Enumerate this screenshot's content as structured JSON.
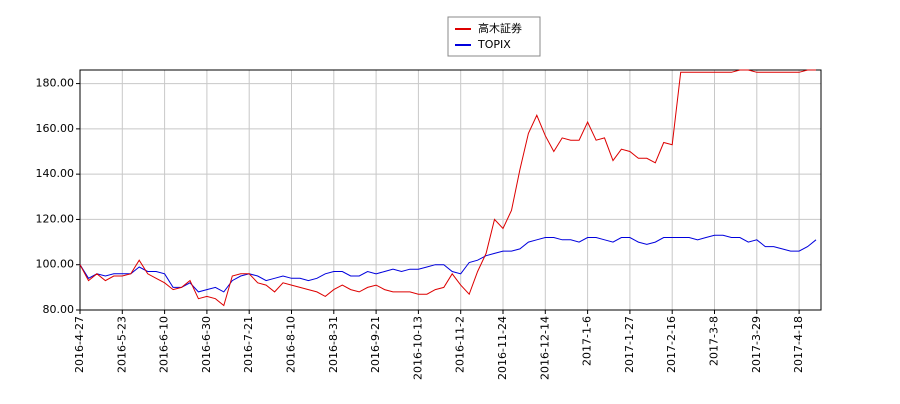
{
  "chart_data": {
    "type": "line",
    "categories": [
      "2016-4-27",
      null,
      null,
      null,
      null,
      "2016-5-23",
      null,
      null,
      null,
      null,
      "2016-6-10",
      null,
      null,
      null,
      null,
      "2016-6-30",
      null,
      null,
      null,
      null,
      "2016-7-21",
      null,
      null,
      null,
      null,
      "2016-8-10",
      null,
      null,
      null,
      null,
      "2016-8-31",
      null,
      null,
      null,
      null,
      "2016-9-21",
      null,
      null,
      null,
      null,
      "2016-10-13",
      null,
      null,
      null,
      null,
      "2016-11-2",
      null,
      null,
      null,
      null,
      "2016-11-24",
      null,
      null,
      null,
      null,
      "2016-12-14",
      null,
      null,
      null,
      null,
      "2017-1-6",
      null,
      null,
      null,
      null,
      "2017-1-27",
      null,
      null,
      null,
      null,
      "2017-2-16",
      null,
      null,
      null,
      null,
      "2017-3-8",
      null,
      null,
      null,
      null,
      "2017-3-29",
      null,
      null,
      null,
      null,
      "2017-4-18",
      null,
      null
    ],
    "series": [
      {
        "name": "高木証券",
        "color": "#dd0000",
        "values": [
          100,
          93,
          96,
          93,
          95,
          95,
          96,
          102,
          96,
          94,
          92,
          89,
          90,
          93,
          85,
          86,
          85,
          82,
          95,
          96,
          96,
          92,
          91,
          88,
          92,
          91,
          90,
          89,
          88,
          86,
          89,
          91,
          89,
          88,
          90,
          91,
          89,
          88,
          88,
          88,
          87,
          87,
          89,
          90,
          96,
          91,
          87,
          97,
          105,
          120,
          116,
          124,
          142,
          158,
          166,
          157,
          150,
          156,
          155,
          155,
          163,
          155,
          156,
          146,
          151,
          150,
          147,
          147,
          145,
          154,
          153,
          185,
          185,
          185,
          185,
          185,
          185,
          185,
          186,
          186,
          185,
          185,
          185,
          185,
          185,
          185,
          186,
          186
        ]
      },
      {
        "name": "TOPIX",
        "color": "#0000dd",
        "values": [
          100,
          94,
          96,
          95,
          96,
          96,
          96,
          99,
          97,
          97,
          96,
          90,
          90,
          92,
          88,
          89,
          90,
          88,
          93,
          95,
          96,
          95,
          93,
          94,
          95,
          94,
          94,
          93,
          94,
          96,
          97,
          97,
          95,
          95,
          97,
          96,
          97,
          98,
          97,
          98,
          98,
          99,
          100,
          100,
          97,
          96,
          101,
          102,
          104,
          105,
          106,
          106,
          107,
          110,
          111,
          112,
          112,
          111,
          111,
          110,
          112,
          112,
          111,
          110,
          112,
          112,
          110,
          109,
          110,
          112,
          112,
          112,
          112,
          111,
          112,
          113,
          113,
          112,
          112,
          110,
          111,
          108,
          108,
          107,
          106,
          106,
          108,
          111
        ]
      }
    ],
    "ylim": [
      80,
      186
    ],
    "yticks": [
      {
        "value": 80,
        "label": "80.00"
      },
      {
        "value": 100,
        "label": "100.00"
      },
      {
        "value": 120,
        "label": "120.00"
      },
      {
        "value": 140,
        "label": "140.00"
      },
      {
        "value": 160,
        "label": "160.00"
      },
      {
        "value": 180,
        "label": "180.00"
      }
    ],
    "grid": true
  }
}
